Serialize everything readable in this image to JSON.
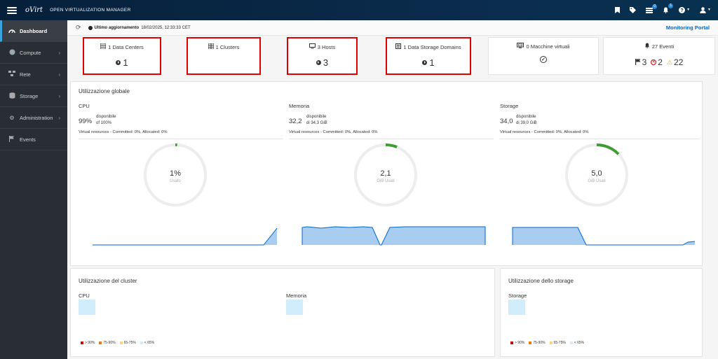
{
  "topbar": {
    "brand": "oVirt",
    "product": "OPEN VIRTUALIZATION MANAGER",
    "icons": [
      "bookmark-icon",
      "tag-icon",
      "tasks-icon",
      "bell-icon",
      "help-icon",
      "user-icon"
    ],
    "tasks_badge": "0",
    "bell_badge": "1"
  },
  "sidebar": {
    "items": [
      {
        "label": "Dashboard",
        "icon": "dashboard-icon"
      },
      {
        "label": "Compute",
        "icon": "compute-icon"
      },
      {
        "label": "Rete",
        "icon": "network-icon"
      },
      {
        "label": "Storage",
        "icon": "storage-icon"
      },
      {
        "label": "Administration",
        "icon": "gear-icon"
      },
      {
        "label": "Events",
        "icon": "flag-icon"
      }
    ]
  },
  "toolbar": {
    "last_update_label": "Ultimo aggiornamento",
    "last_update_value": "18/02/2025, 12:33:33 CET",
    "portal_link": "Monitoring Portal"
  },
  "cards": [
    {
      "title": "1 Data Centers",
      "value": "1",
      "icon": "datacenter-icon",
      "highlighted": true
    },
    {
      "title": "1 Clusters",
      "value": "",
      "icon": "cluster-icon",
      "highlighted": true
    },
    {
      "title": "3 Hosts",
      "value": "3",
      "icon": "host-icon",
      "highlighted": true
    },
    {
      "title": "1 Data Storage Domains",
      "value": "1",
      "icon": "storage-domain-icon",
      "highlighted": true
    },
    {
      "title": "0 Macchine virtuali",
      "icon": "vm-icon",
      "status_icon": "check-circle-icon"
    },
    {
      "title": "27 Eventi",
      "icon": "bell-icon",
      "alerts": "3",
      "errors": "2",
      "warnings": "22"
    }
  ],
  "global_utilization": {
    "title": "Utilizzazione globale",
    "columns": [
      {
        "title": "CPU",
        "big": "99%",
        "small1": "disponibile",
        "small2": "of 100%",
        "virtual": "Virtual resources - Committed: 0%, Allocated: 0%",
        "donut_value": "1%",
        "donut_label": "Usato",
        "used_fraction": 0.01
      },
      {
        "title": "Memoria",
        "big": "32,2",
        "small1": "disponibile",
        "small2": "di 34,3 GiB",
        "virtual": "Virtual resources - Committed: 0%, Allocated: 0%",
        "donut_value": "2,1",
        "donut_label": "GiB Usati",
        "used_fraction": 0.061
      },
      {
        "title": "Storage",
        "big": "34,0",
        "small1": "disponibile",
        "small2": "di 39,0 GiB",
        "virtual": "Virtual resources - Committed: 0%, Allocated: 0%",
        "donut_value": "5,0",
        "donut_label": "GiB Usati",
        "used_fraction": 0.128
      }
    ],
    "donut_color": "#3f9c35",
    "spark_color": "#0066cc",
    "spark_fill": "#a9cdf0"
  },
  "cluster_utilization": {
    "title": "Utilizzazione del cluster",
    "cpu_label": "CPU",
    "memory_label": "Memoria"
  },
  "storage_utilization": {
    "title": "Utilizzazione dello storage",
    "storage_label": "Storage"
  },
  "legend": [
    {
      "label": "> 90%",
      "color": "#cc0000"
    },
    {
      "label": "75-90%",
      "color": "#ec7a08"
    },
    {
      "label": "65-75%",
      "color": "#f9d67a"
    },
    {
      "label": "< 65%",
      "color": "#d1ecfa"
    }
  ]
}
